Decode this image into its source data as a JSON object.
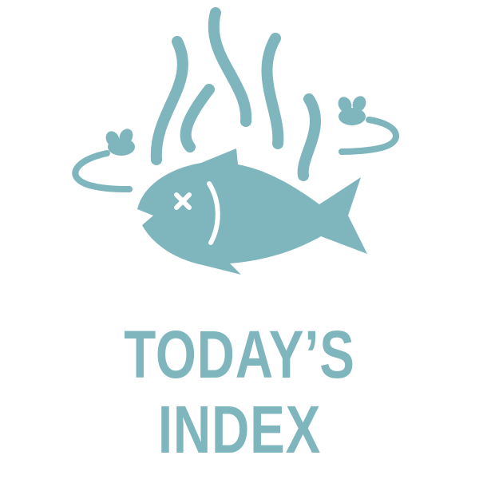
{
  "colors": {
    "teal": "#7fb5bd",
    "background": "#ffffff"
  },
  "icon": {
    "name": "dead-fish-stink-icon"
  },
  "headline": {
    "line1": "TODAY’S",
    "line2": "INDEX"
  }
}
